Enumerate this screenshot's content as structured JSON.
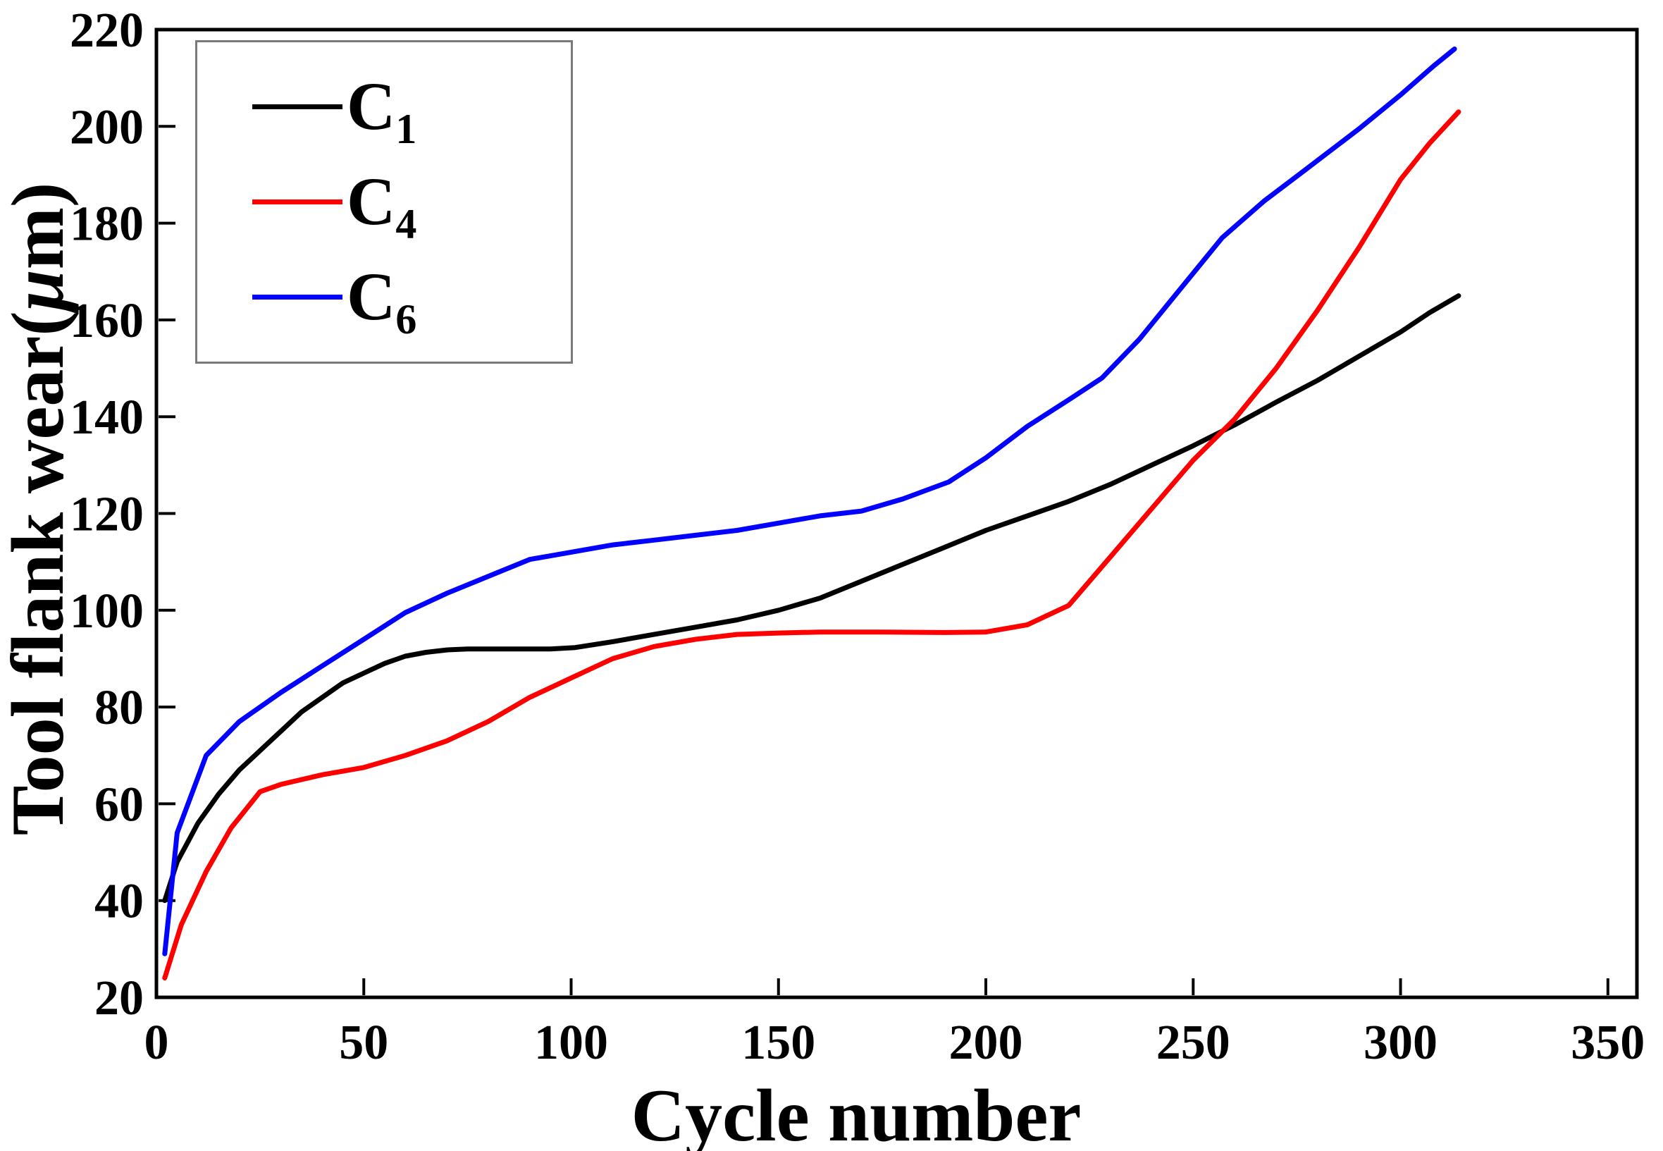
{
  "figure": {
    "background": "#ffffff",
    "frame_color": "#000000",
    "legend_border_color": "#7a7a7a"
  },
  "chart_data": {
    "type": "line",
    "title": "",
    "xlabel": "Cycle number",
    "ylabel": "Tool flank wear(μm)",
    "xlim": [
      0,
      357
    ],
    "ylim": [
      20,
      220
    ],
    "xticks": [
      0,
      50,
      100,
      150,
      200,
      250,
      300,
      350
    ],
    "yticks": [
      20,
      40,
      60,
      80,
      100,
      120,
      140,
      160,
      180,
      200,
      220
    ],
    "grid": false,
    "legend_position": "upper-left",
    "series": [
      {
        "name": "C",
        "sub": "1",
        "color": "#000000",
        "points": [
          [
            2,
            40
          ],
          [
            5,
            48
          ],
          [
            10,
            56
          ],
          [
            15,
            62
          ],
          [
            20,
            67
          ],
          [
            25,
            71
          ],
          [
            30,
            75
          ],
          [
            35,
            79
          ],
          [
            40,
            82
          ],
          [
            45,
            85
          ],
          [
            50,
            87
          ],
          [
            55,
            89
          ],
          [
            60,
            90.5
          ],
          [
            65,
            91.3
          ],
          [
            70,
            91.8
          ],
          [
            75,
            92
          ],
          [
            85,
            92
          ],
          [
            95,
            92
          ],
          [
            101,
            92.3
          ],
          [
            110,
            93.5
          ],
          [
            120,
            95
          ],
          [
            130,
            96.5
          ],
          [
            140,
            98
          ],
          [
            150,
            100
          ],
          [
            160,
            102.5
          ],
          [
            170,
            106
          ],
          [
            180,
            109.5
          ],
          [
            190,
            113
          ],
          [
            200,
            116.5
          ],
          [
            210,
            119.5
          ],
          [
            220,
            122.5
          ],
          [
            230,
            126
          ],
          [
            240,
            130
          ],
          [
            250,
            134
          ],
          [
            260,
            138.3
          ],
          [
            270,
            143
          ],
          [
            280,
            147.5
          ],
          [
            290,
            152.5
          ],
          [
            300,
            157.5
          ],
          [
            307,
            161.5
          ],
          [
            314,
            165
          ]
        ]
      },
      {
        "name": "C",
        "sub": "4",
        "color": "#fe0000",
        "points": [
          [
            2,
            24
          ],
          [
            6,
            35
          ],
          [
            12,
            46
          ],
          [
            18,
            55
          ],
          [
            25,
            62.5
          ],
          [
            30,
            64
          ],
          [
            40,
            66
          ],
          [
            50,
            67.5
          ],
          [
            60,
            70
          ],
          [
            70,
            73
          ],
          [
            80,
            77
          ],
          [
            90,
            82
          ],
          [
            100,
            86
          ],
          [
            110,
            90
          ],
          [
            120,
            92.5
          ],
          [
            130,
            94
          ],
          [
            140,
            95
          ],
          [
            150,
            95.3
          ],
          [
            160,
            95.5
          ],
          [
            175,
            95.5
          ],
          [
            190,
            95.4
          ],
          [
            200,
            95.5
          ],
          [
            210,
            97
          ],
          [
            220,
            101
          ],
          [
            230,
            111
          ],
          [
            240,
            121
          ],
          [
            250,
            131
          ],
          [
            260,
            139.5
          ],
          [
            270,
            150
          ],
          [
            280,
            162
          ],
          [
            290,
            175
          ],
          [
            300,
            189
          ],
          [
            307,
            196.5
          ],
          [
            314,
            203
          ]
        ]
      },
      {
        "name": "C",
        "sub": "6",
        "color": "#0202fe",
        "points": [
          [
            2,
            29
          ],
          [
            5,
            54
          ],
          [
            12,
            70
          ],
          [
            20,
            77
          ],
          [
            25,
            80
          ],
          [
            30,
            83
          ],
          [
            40,
            88.5
          ],
          [
            50,
            94
          ],
          [
            60,
            99.5
          ],
          [
            70,
            103.5
          ],
          [
            80,
            107
          ],
          [
            90,
            110.5
          ],
          [
            100,
            112
          ],
          [
            110,
            113.5
          ],
          [
            120,
            114.5
          ],
          [
            130,
            115.5
          ],
          [
            140,
            116.5
          ],
          [
            150,
            118
          ],
          [
            160,
            119.5
          ],
          [
            170,
            120.5
          ],
          [
            180,
            123
          ],
          [
            191,
            126.5
          ],
          [
            200,
            131.5
          ],
          [
            210,
            138
          ],
          [
            220,
            143.5
          ],
          [
            228,
            148
          ],
          [
            237,
            156
          ],
          [
            247,
            166.5
          ],
          [
            257,
            177
          ],
          [
            267,
            184.5
          ],
          [
            277,
            191
          ],
          [
            290,
            199.5
          ],
          [
            300,
            206.5
          ],
          [
            308,
            212.5
          ],
          [
            313,
            216
          ]
        ]
      }
    ]
  }
}
